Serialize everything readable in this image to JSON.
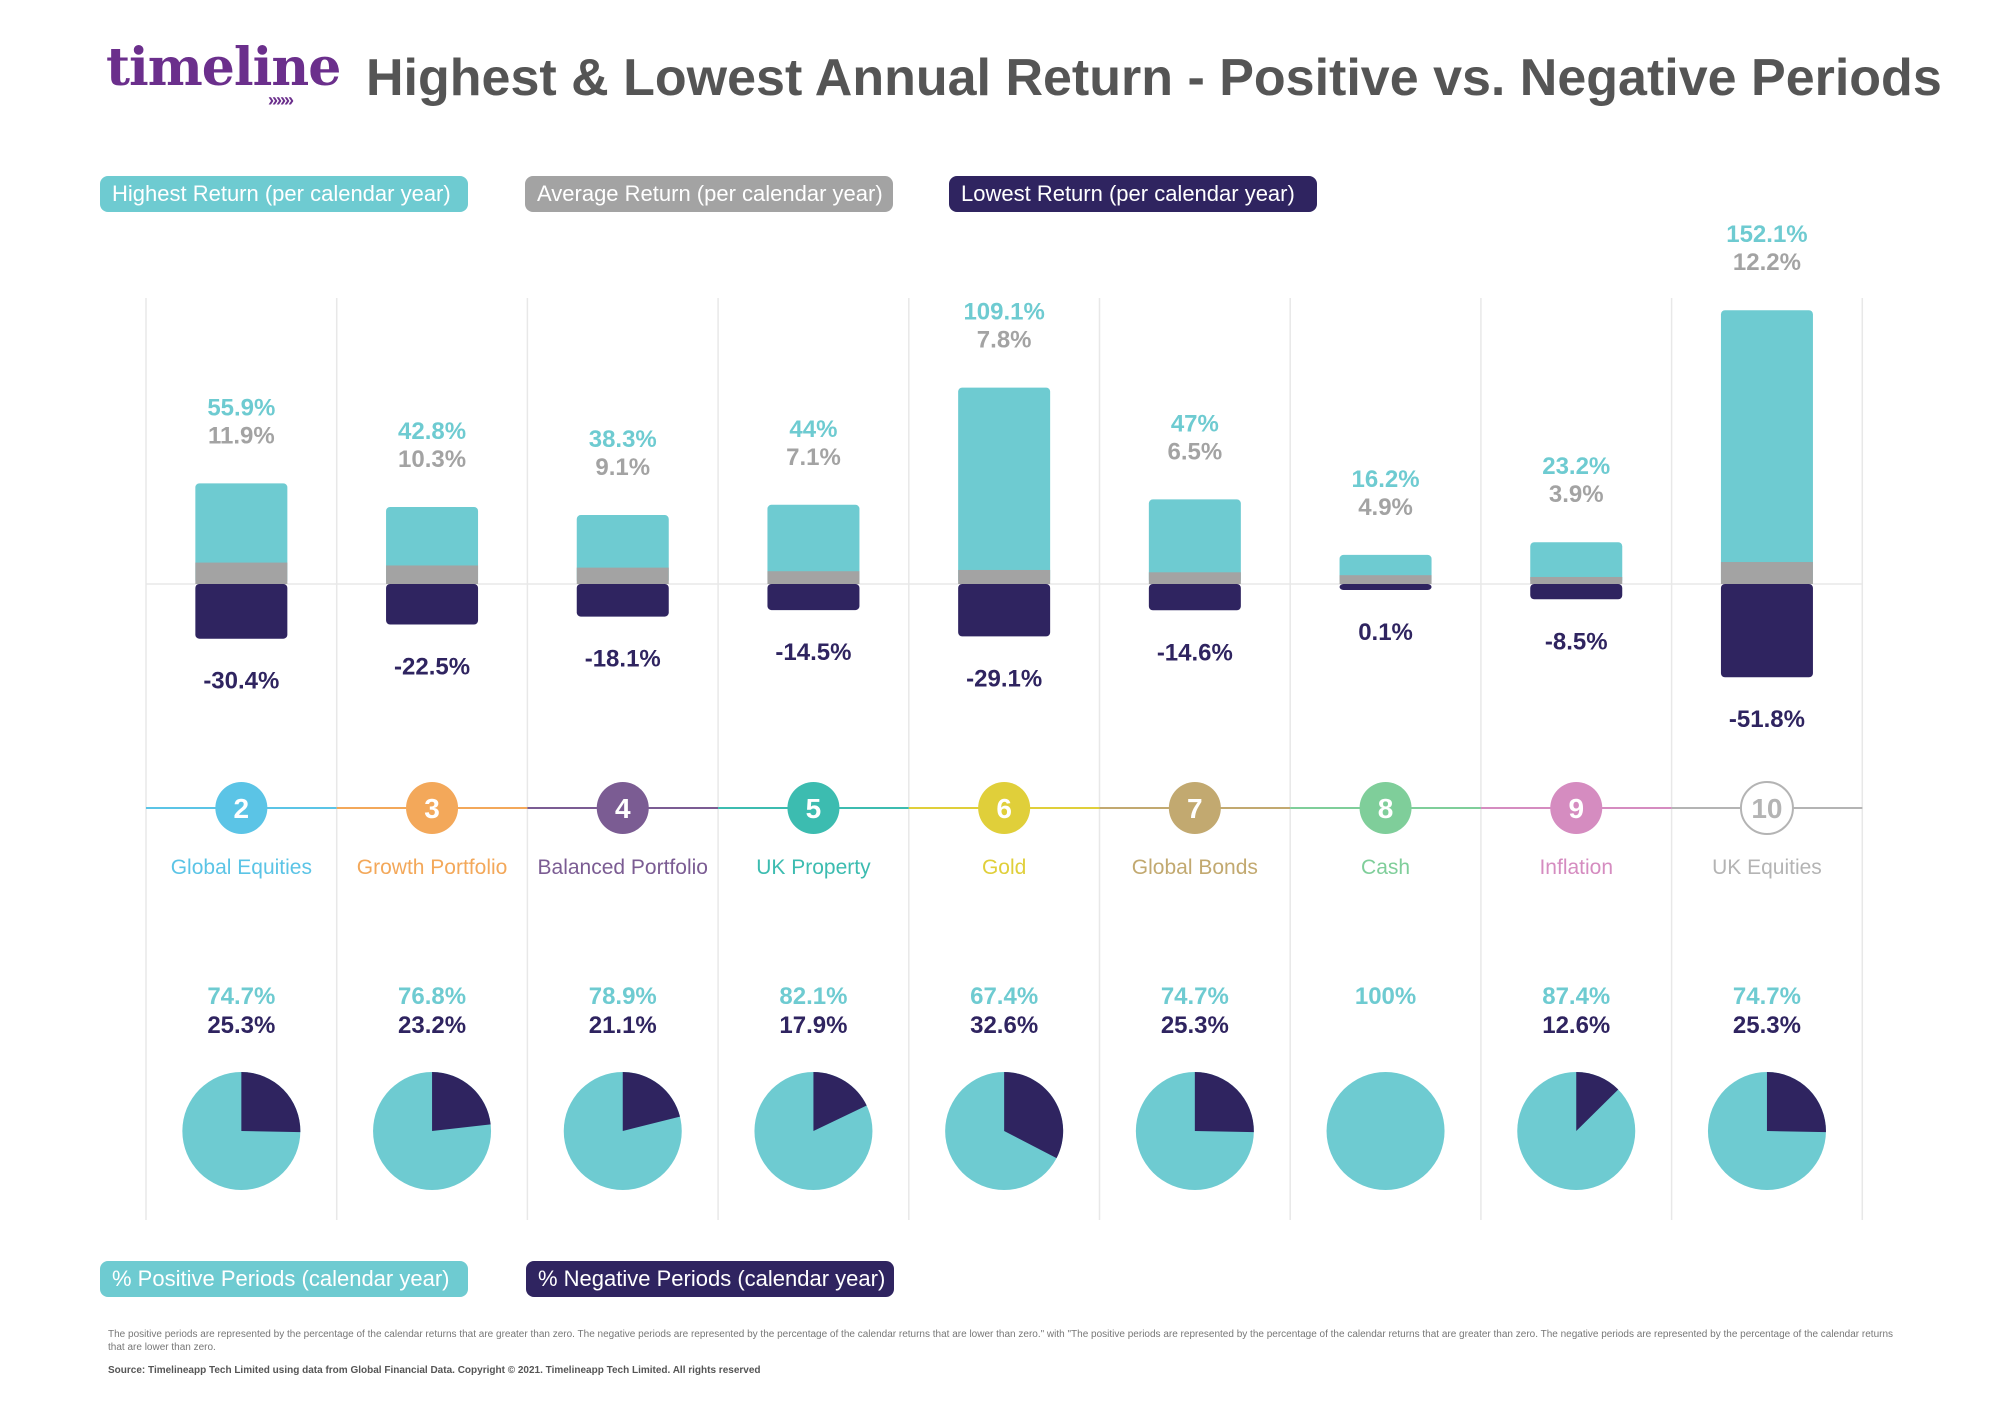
{
  "header": {
    "logo_text": "timeline",
    "logo_arrows": "»»»",
    "title": "Highest & Lowest Annual Return - Positive vs. Negative Periods"
  },
  "legend_top": {
    "highest": "Highest Return (per calendar year)",
    "average": "Average Return (per calendar year)",
    "lowest": "Lowest Return (per calendar year)"
  },
  "legend_bottom": {
    "positive": "% Positive Periods (calendar year)",
    "negative": "% Negative Periods (calendar year)"
  },
  "footer": {
    "note": "The positive periods are represented by the percentage of the calendar returns that are greater than zero. The negative periods are represented by the percentage of the calendar returns that are lower than zero.\" with \"The positive periods are represented by the percentage of the calendar returns that are greater than zero. The negative periods are represented by the percentage of the calendar returns that are lower than zero.",
    "source": "Source: Timelineapp Tech Limited using data from Global Financial Data. Copyright © 2021. Timelineapp Tech Limited. All rights reserved"
  },
  "colors": {
    "highest": "#6ecbd1",
    "average": "#a3a3a3",
    "lowest": "#2f2460",
    "grid": "#e8e8e8"
  },
  "chart_data": [
    {
      "type": "bar",
      "categories": [
        "Global Equities",
        "Growth Portfolio",
        "Balanced Portfolio",
        "UK Property",
        "Gold",
        "Global Bonds",
        "Cash",
        "Inflation",
        "UK Equities"
      ],
      "numbers": [
        "2",
        "3",
        "4",
        "5",
        "6",
        "7",
        "8",
        "9",
        "10"
      ],
      "category_colors": [
        "#5bc4e6",
        "#f3a85a",
        "#7b5c93",
        "#3cbcb0",
        "#e0cf3a",
        "#c2a970",
        "#7fce9a",
        "#d58cc0",
        "#b4b4b4"
      ],
      "series": [
        {
          "name": "Highest Return (per calendar year)",
          "values": [
            55.9,
            42.8,
            38.3,
            44,
            109.1,
            47,
            16.2,
            23.2,
            152.1
          ],
          "labels": [
            "55.9%",
            "42.8%",
            "38.3%",
            "44%",
            "109.1%",
            "47%",
            "16.2%",
            "23.2%",
            "152.1%"
          ]
        },
        {
          "name": "Average Return (per calendar year)",
          "values": [
            11.9,
            10.3,
            9.1,
            7.1,
            7.8,
            6.5,
            4.9,
            3.9,
            12.2
          ],
          "labels": [
            "11.9%",
            "10.3%",
            "9.1%",
            "7.1%",
            "7.8%",
            "6.5%",
            "4.9%",
            "3.9%",
            "12.2%"
          ]
        },
        {
          "name": "Lowest Return (per calendar year)",
          "values": [
            -30.4,
            -22.5,
            -18.1,
            -14.5,
            -29.1,
            -14.6,
            0.1,
            -8.5,
            -51.8
          ],
          "labels": [
            "-30.4%",
            "-22.5%",
            "-18.1%",
            "-14.5%",
            "-29.1%",
            "-14.6%",
            "0.1%",
            "-8.5%",
            "-51.8%"
          ]
        }
      ]
    },
    {
      "type": "pie",
      "categories": [
        "Global Equities",
        "Growth Portfolio",
        "Balanced Portfolio",
        "UK Property",
        "Gold",
        "Global Bonds",
        "Cash",
        "Inflation",
        "UK Equities"
      ],
      "series": [
        {
          "name": "% Positive Periods (calendar year)",
          "values": [
            74.7,
            76.8,
            78.9,
            82.1,
            67.4,
            74.7,
            100,
            87.4,
            74.7
          ],
          "labels": [
            "74.7%",
            "76.8%",
            "78.9%",
            "82.1%",
            "67.4%",
            "74.7%",
            "100%",
            "87.4%",
            "74.7%"
          ]
        },
        {
          "name": "% Negative Periods (calendar year)",
          "values": [
            25.3,
            23.2,
            21.1,
            17.9,
            32.6,
            25.3,
            0,
            12.6,
            25.3
          ],
          "labels": [
            "25.3%",
            "23.2%",
            "21.1%",
            "17.9%",
            "32.6%",
            "25.3%",
            "",
            "12.6%",
            "25.3%"
          ]
        }
      ]
    }
  ]
}
